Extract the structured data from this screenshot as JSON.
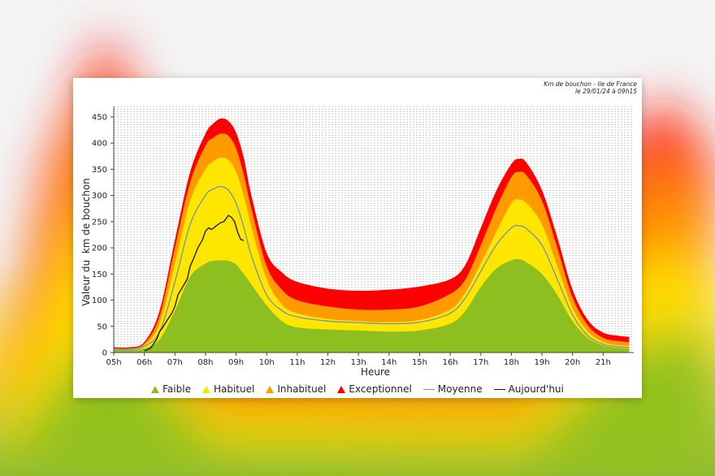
{
  "header": {
    "line1": "Km de bouchon - Ile de France",
    "line2": "le 29/01/24 à 09h15"
  },
  "chart_data": {
    "type": "area",
    "title": "",
    "xlabel": "Heure",
    "ylabel": "Valeur du  km de bouchon",
    "xlim": [
      5,
      22
    ],
    "ylim": [
      0,
      470
    ],
    "x_ticks": [
      "05h",
      "06h",
      "07h",
      "08h",
      "09h",
      "10h",
      "11h",
      "12h",
      "13h",
      "14h",
      "15h",
      "16h",
      "17h",
      "18h",
      "19h",
      "20h",
      "21h"
    ],
    "y_ticks": [
      "0",
      "50",
      "100",
      "150",
      "200",
      "250",
      "300",
      "350",
      "400",
      "450"
    ],
    "grid": true,
    "legend_position": "bottom",
    "x": [
      5.0,
      5.5,
      6.0,
      6.5,
      7.0,
      7.5,
      8.0,
      8.25,
      8.5,
      8.75,
      9.0,
      9.25,
      9.5,
      10.0,
      10.5,
      11.0,
      12.0,
      13.0,
      14.0,
      15.0,
      16.0,
      16.5,
      17.0,
      17.5,
      18.0,
      18.25,
      18.5,
      19.0,
      19.5,
      20.0,
      20.5,
      21.0,
      21.5,
      21.85
    ],
    "series": [
      {
        "name": "Faible",
        "color": "#8cbf1f",
        "values": [
          5,
          5,
          8,
          25,
          80,
          145,
          170,
          175,
          176,
          175,
          168,
          150,
          130,
          90,
          60,
          48,
          44,
          42,
          40,
          42,
          55,
          80,
          125,
          160,
          176,
          178,
          172,
          150,
          110,
          60,
          28,
          14,
          9,
          8
        ]
      },
      {
        "name": "Habituel",
        "color": "#ffe600",
        "values": [
          7,
          7,
          14,
          55,
          170,
          290,
          350,
          365,
          372,
          368,
          345,
          300,
          240,
          140,
          92,
          75,
          64,
          60,
          58,
          62,
          82,
          115,
          170,
          230,
          285,
          292,
          285,
          245,
          165,
          85,
          40,
          20,
          14,
          13
        ]
      },
      {
        "name": "Inhabituel",
        "color": "#ff9a00",
        "values": [
          8,
          8,
          17,
          70,
          200,
          325,
          395,
          410,
          418,
          414,
          390,
          340,
          275,
          165,
          120,
          100,
          88,
          82,
          82,
          88,
          112,
          140,
          205,
          275,
          335,
          345,
          338,
          290,
          200,
          105,
          52,
          28,
          22,
          20
        ]
      },
      {
        "name": "Exceptionnel",
        "color": "#ff0000",
        "values": [
          10,
          10,
          20,
          80,
          215,
          345,
          418,
          437,
          447,
          442,
          420,
          372,
          300,
          190,
          153,
          135,
          122,
          118,
          120,
          126,
          140,
          168,
          238,
          308,
          360,
          370,
          362,
          310,
          220,
          120,
          62,
          38,
          32,
          30
        ]
      }
    ],
    "moyenne": {
      "name": "Moyenne",
      "color": "#6e93b8",
      "values": [
        6,
        6,
        12,
        40,
        135,
        245,
        300,
        312,
        317,
        310,
        285,
        240,
        185,
        110,
        80,
        68,
        60,
        57,
        55,
        58,
        75,
        105,
        155,
        205,
        238,
        242,
        236,
        205,
        140,
        72,
        32,
        16,
        11,
        10
      ]
    },
    "aujourdhui": {
      "name": "Aujourd'hui",
      "color": "#111111",
      "x": [
        6.0,
        6.2,
        6.4,
        6.5,
        6.6,
        6.75,
        6.9,
        7.0,
        7.1,
        7.25,
        7.4,
        7.5,
        7.6,
        7.75,
        7.9,
        8.0,
        8.1,
        8.2,
        8.35,
        8.5,
        8.6,
        8.75,
        8.85,
        8.95,
        9.05,
        9.15,
        9.25
      ],
      "values": [
        3,
        8,
        25,
        40,
        48,
        62,
        75,
        88,
        110,
        125,
        140,
        165,
        178,
        200,
        215,
        232,
        238,
        235,
        242,
        248,
        250,
        262,
        258,
        250,
        230,
        216,
        214
      ]
    }
  }
}
